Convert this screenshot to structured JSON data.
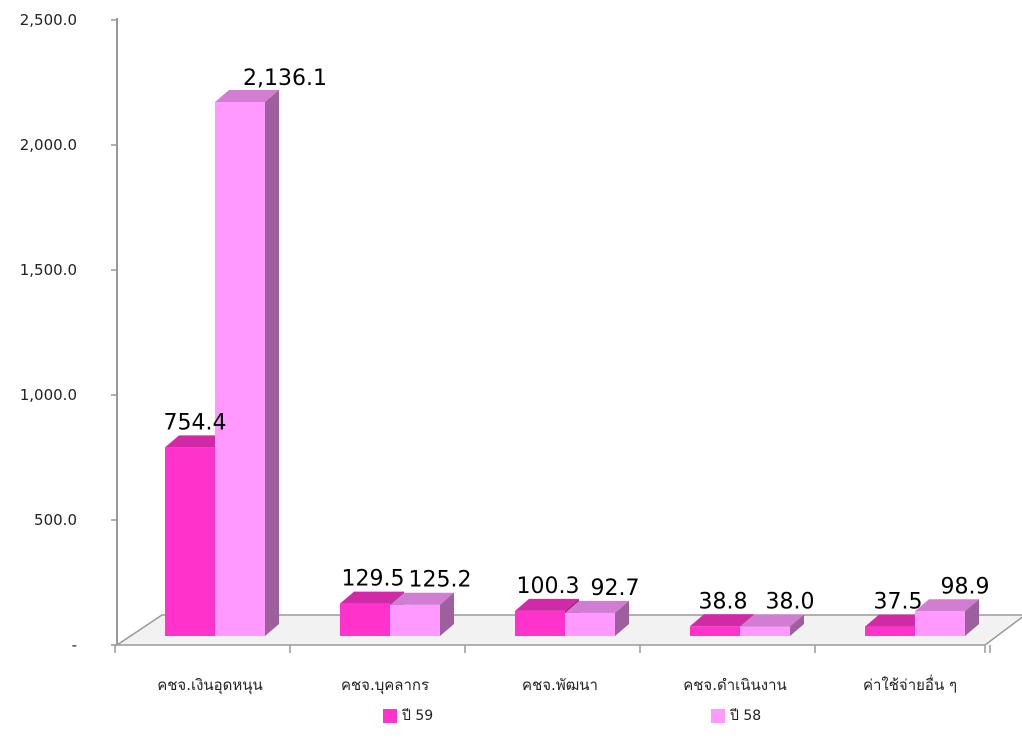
{
  "chart_data": {
    "type": "bar",
    "categories": [
      "คชจ.เงินอุดหนุน",
      "คชจ.บุคลากร",
      "คชจ.พัฒนา",
      "คชจ.ดำเนินงาน",
      "ค่าใช้จ่ายอื่น ๆ"
    ],
    "series": [
      {
        "name": "ปี 59",
        "values": [
          754.4,
          129.5,
          100.3,
          38.8,
          37.5
        ],
        "color": "#ff33cc"
      },
      {
        "name": "ปี 58",
        "values": [
          2136.1,
          125.2,
          92.7,
          38.0,
          98.9
        ],
        "color": "#ff99ff"
      }
    ],
    "data_labels": [
      [
        "754.4",
        "129.5",
        "100.3",
        "38.8",
        "37.5"
      ],
      [
        "2,136.1",
        "125.2",
        "92.7",
        "38.0",
        "98.9"
      ]
    ],
    "yticks": [
      {
        "value": 0,
        "label": "-"
      },
      {
        "value": 500,
        "label": "500.0"
      },
      {
        "value": 1000,
        "label": "1,000.0"
      },
      {
        "value": 1500,
        "label": "1,500.0"
      },
      {
        "value": 2000,
        "label": "2,000.0"
      },
      {
        "value": 2500,
        "label": "2,500.0"
      }
    ],
    "ylim": [
      0,
      2500
    ],
    "grid": false,
    "legend_position": "bottom",
    "three_d": true
  }
}
